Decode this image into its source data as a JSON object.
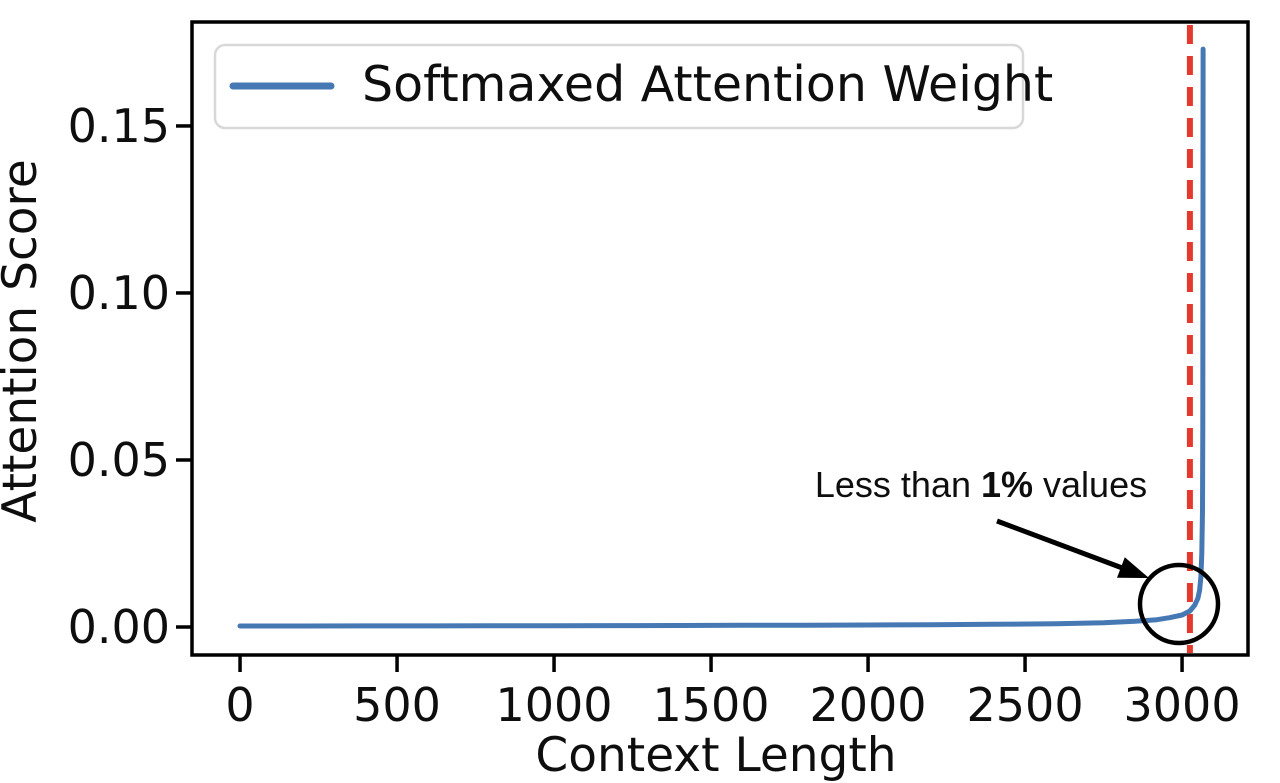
{
  "figure": {
    "background": "#ffffff"
  },
  "chart_data": {
    "type": "line",
    "title": "",
    "xlabel": "Context Length",
    "ylabel": "Attention Score",
    "xlim": [
      -153,
      3210
    ],
    "ylim": [
      -0.00838,
      0.18112
    ],
    "grid": false,
    "xticks": {
      "values": [
        0,
        500,
        1000,
        1500,
        2000,
        2500,
        3000
      ],
      "labels": [
        "0",
        "500",
        "1000",
        "1500",
        "2000",
        "2500",
        "3000"
      ]
    },
    "yticks": {
      "values": [
        0,
        0.05,
        0.1,
        0.15
      ],
      "labels": [
        "0.00",
        "0.05",
        "0.10",
        "0.15"
      ]
    },
    "legend": {
      "position": "upper-left",
      "entries": [
        {
          "label": "Softmaxed Attention Weight",
          "color": "#4678b4"
        }
      ]
    },
    "series": [
      {
        "name": "Softmaxed Attention Weight",
        "color": "#4678b4",
        "points": [
          [
            0,
            0.0003
          ],
          [
            200,
            0.0003
          ],
          [
            400,
            0.00032
          ],
          [
            600,
            0.00034
          ],
          [
            800,
            0.00036
          ],
          [
            1000,
            0.0004
          ],
          [
            1200,
            0.00042
          ],
          [
            1400,
            0.00045
          ],
          [
            1600,
            0.0005
          ],
          [
            1800,
            0.00055
          ],
          [
            2000,
            0.0006
          ],
          [
            2200,
            0.0007
          ],
          [
            2400,
            0.0008
          ],
          [
            2600,
            0.001
          ],
          [
            2750,
            0.0013
          ],
          [
            2850,
            0.0017
          ],
          [
            2920,
            0.0022
          ],
          [
            2960,
            0.0028
          ],
          [
            3000,
            0.0036
          ],
          [
            3025,
            0.0048
          ],
          [
            3040,
            0.0065
          ],
          [
            3050,
            0.0085
          ],
          [
            3056,
            0.011
          ],
          [
            3060,
            0.015
          ],
          [
            3063,
            0.022
          ],
          [
            3065,
            0.035
          ],
          [
            3066,
            0.06
          ],
          [
            3067,
            0.173
          ]
        ]
      }
    ],
    "vline": {
      "x": 3025,
      "color": "#e6392e",
      "style": "dashed"
    },
    "annotation": {
      "prefix": "Less than ",
      "bold": "1%",
      "suffix": " values",
      "color": "#000000",
      "points_to_x": 3000,
      "points_to_y": 0.0
    }
  },
  "colors": {
    "line_blue": "#4678b4",
    "dashed_red": "#e6392e",
    "spine": "#000000",
    "legend_border": "#d8d8d8",
    "annotation_black": "#000000"
  }
}
